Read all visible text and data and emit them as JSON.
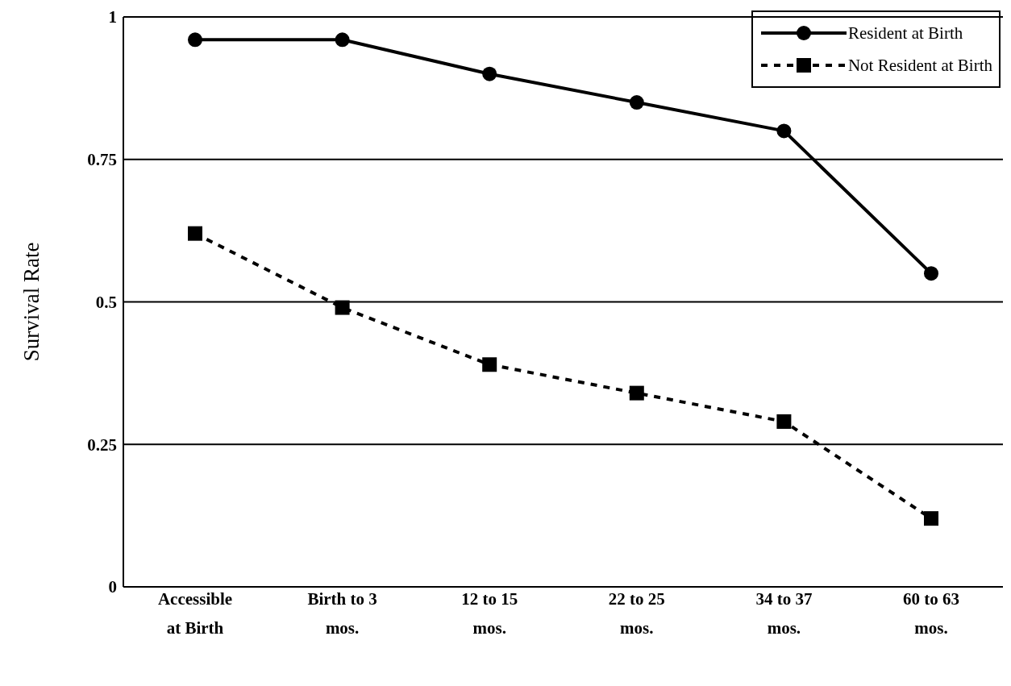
{
  "chart_data": {
    "type": "line",
    "ylabel": "Survival Rate",
    "categories": [
      "Accessible\nat Birth",
      "Birth to 3\nmos.",
      "12 to 15\nmos.",
      "22 to 25\nmos.",
      "34 to 37\nmos.",
      "60 to 63\nmos."
    ],
    "series": [
      {
        "name": "Resident at Birth",
        "color": "#000000",
        "marker": "circle",
        "line_style": "solid",
        "values": [
          0.96,
          0.96,
          0.9,
          0.85,
          0.8,
          0.55
        ]
      },
      {
        "name": "Not Resident at Birth",
        "color": "#000000",
        "marker": "square",
        "line_style": "dashed",
        "values": [
          0.62,
          0.49,
          0.39,
          0.34,
          0.29,
          0.12
        ]
      }
    ],
    "ylim": [
      0,
      1
    ],
    "yticks": [
      0,
      0.25,
      0.5,
      0.75,
      1
    ],
    "grid": "y",
    "legend": "top right"
  }
}
